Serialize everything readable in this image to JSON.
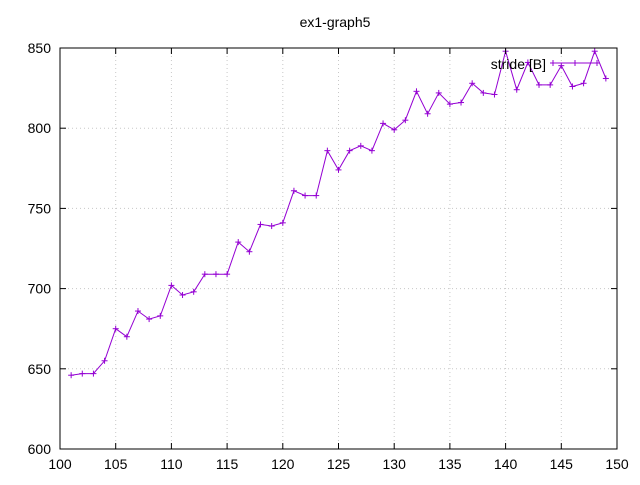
{
  "chart_data": {
    "type": "line",
    "title": "ex1-graph5",
    "xlabel": "",
    "ylabel": "",
    "xlim": [
      100,
      150
    ],
    "ylim": [
      600,
      850
    ],
    "xticks": [
      100,
      105,
      110,
      115,
      120,
      125,
      130,
      135,
      140,
      145,
      150
    ],
    "yticks": [
      600,
      650,
      700,
      750,
      800,
      850
    ],
    "grid": true,
    "legend_position": "top-right",
    "series": [
      {
        "name": "stride [B]",
        "color": "#9400d3",
        "marker": "plus",
        "x": [
          101,
          102,
          103,
          104,
          105,
          106,
          107,
          108,
          109,
          110,
          111,
          112,
          113,
          114,
          115,
          116,
          117,
          118,
          119,
          120,
          121,
          122,
          123,
          124,
          125,
          126,
          127,
          128,
          129,
          130,
          131,
          132,
          133,
          134,
          135,
          136,
          137,
          138,
          139,
          140,
          141,
          142,
          143,
          144,
          145,
          146,
          147,
          148,
          149
        ],
        "y": [
          646,
          647,
          647,
          655,
          675,
          670,
          686,
          681,
          683,
          702,
          696,
          698,
          709,
          709,
          709,
          729,
          723,
          740,
          739,
          741,
          761,
          758,
          758,
          786,
          774,
          786,
          789,
          786,
          803,
          799,
          805,
          823,
          809,
          822,
          815,
          816,
          828,
          822,
          821,
          848,
          824,
          841,
          827,
          827,
          839,
          826,
          828,
          848,
          831
        ]
      }
    ]
  }
}
